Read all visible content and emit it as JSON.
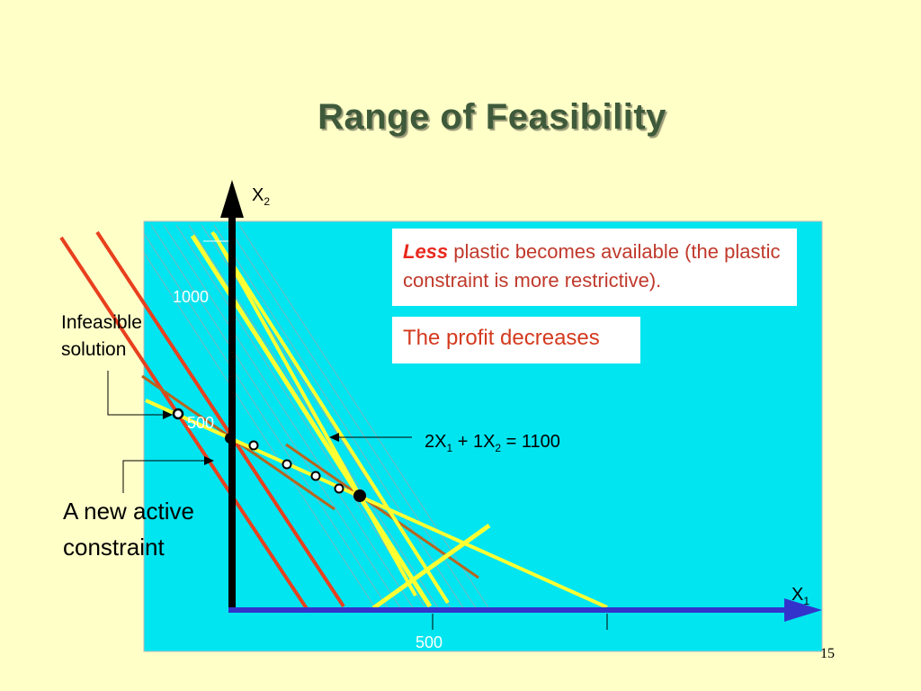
{
  "slide": {
    "title": "Range of Feasibility",
    "page_number": "15"
  },
  "callouts": {
    "less_word": "Less",
    "less_rest": " plastic becomes available (the plastic constraint is more restrictive).",
    "profit": "The profit decreases"
  },
  "labels": {
    "infeasible_line1": "Infeasible",
    "infeasible_line2": "solution",
    "new_active_line1": "A new active",
    "new_active_line2": "constraint"
  },
  "axes": {
    "x_base": "X",
    "x_sub": "1",
    "y_base": "X",
    "y_sub": "2",
    "ticks": {
      "x_500": "500",
      "y_1000": "1000",
      "y_500": "500"
    }
  },
  "equation": {
    "t1": "2X",
    "s1": "1",
    "t2": " + 1X",
    "s2": "2",
    "t3": " = 1100"
  },
  "colors": {
    "background": "#FFFFC8",
    "plot_area": "#00E5F0",
    "x_axis": "#3333CC",
    "constraint_red": "#E8401E",
    "constraint_yellow": "#FFFF33",
    "profit_brown": "#B8641E",
    "title": "#3E5A3A"
  }
}
